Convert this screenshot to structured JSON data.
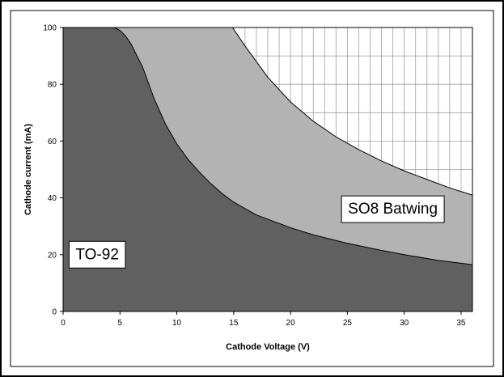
{
  "chart_data": {
    "type": "area",
    "title": "",
    "xlabel": "Cathode Voltage (V)",
    "ylabel": "Cathode current (mA)",
    "xlim": [
      0,
      36
    ],
    "ylim": [
      0,
      100
    ],
    "x_ticks": [
      0,
      5,
      10,
      15,
      20,
      25,
      30,
      35
    ],
    "y_ticks": [
      0,
      20,
      40,
      60,
      80,
      100
    ],
    "x_tick_labels": [
      "0",
      "5",
      "10",
      "15",
      "20",
      "25",
      "30",
      "35"
    ],
    "y_tick_labels": [
      "0",
      "20",
      "40",
      "60",
      "80",
      "100"
    ],
    "grid": true,
    "legend": "none",
    "series": [
      {
        "name": "SO8 Batwing",
        "color": "#b3b3b3",
        "points": [
          [
            0,
            100
          ],
          [
            14.9,
            100
          ],
          [
            16,
            93.5
          ],
          [
            18,
            82.5
          ],
          [
            20,
            73.8
          ],
          [
            22,
            67
          ],
          [
            24,
            61.5
          ],
          [
            26,
            57
          ],
          [
            28,
            53
          ],
          [
            30,
            49.5
          ],
          [
            32,
            46.5
          ],
          [
            34,
            43.5
          ],
          [
            36,
            41
          ]
        ]
      },
      {
        "name": "TO-92",
        "color": "#606060",
        "points": [
          [
            0,
            100
          ],
          [
            4.5,
            100
          ],
          [
            5,
            99
          ],
          [
            5.5,
            97
          ],
          [
            6,
            94
          ],
          [
            7,
            86
          ],
          [
            8,
            75
          ],
          [
            9,
            66
          ],
          [
            10,
            59
          ],
          [
            11,
            53.5
          ],
          [
            12,
            49
          ],
          [
            13,
            45
          ],
          [
            14,
            41.5
          ],
          [
            15,
            38.5
          ],
          [
            17,
            34
          ],
          [
            20,
            29.5
          ],
          [
            22,
            27
          ],
          [
            25,
            24
          ],
          [
            28,
            21.5
          ],
          [
            30,
            20
          ],
          [
            33,
            18
          ],
          [
            36,
            16.5
          ]
        ]
      }
    ],
    "annotations": [
      {
        "text": "SO8 Batwing",
        "x": 29,
        "y": 36
      },
      {
        "text": "TO-92",
        "x": 3,
        "y": 20
      }
    ]
  }
}
